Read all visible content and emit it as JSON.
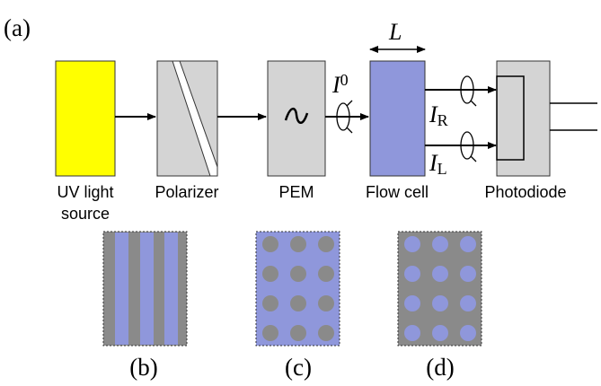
{
  "panel_labels": {
    "a": "(a)",
    "b": "(b)",
    "c": "(c)",
    "d": "(d)"
  },
  "components": {
    "uv_source": [
      "UV light",
      "source"
    ],
    "polarizer": "Polarizer",
    "pem": "PEM",
    "flow_cell": "Flow cell",
    "photodiode": "Photodiode"
  },
  "symbols": {
    "length": "L",
    "i0": {
      "main": "I",
      "sub": "0"
    },
    "ir": {
      "main": "I",
      "sub": "R"
    },
    "il": {
      "main": "I",
      "sub": "L"
    }
  }
}
